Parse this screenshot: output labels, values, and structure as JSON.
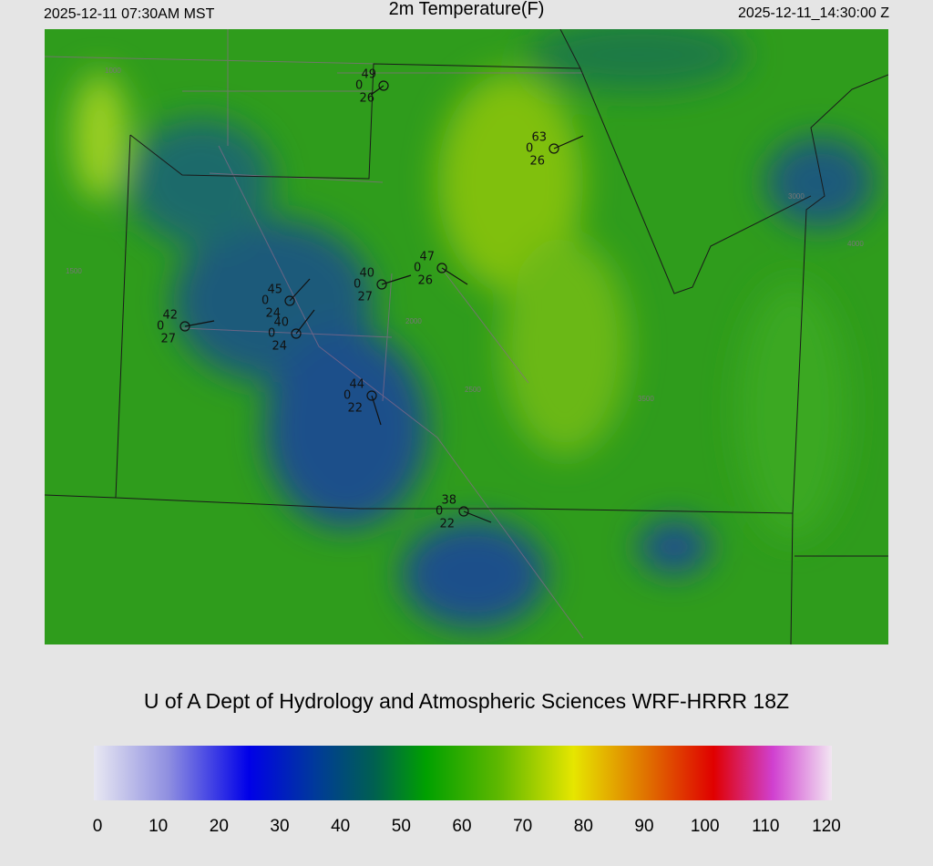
{
  "header": {
    "local_time": "2025-12-11 07:30AM MST",
    "title": "2m Temperature(F)",
    "utc_time": "2025-12-11_14:30:00 Z"
  },
  "stations": [
    {
      "temperature": "49",
      "pressure": "0",
      "dewpoint": "26"
    },
    {
      "temperature": "63",
      "pressure": "0",
      "dewpoint": "26"
    },
    {
      "temperature": "47",
      "pressure": "0",
      "dewpoint": "26"
    },
    {
      "temperature": "40",
      "pressure": "0",
      "dewpoint": "27"
    },
    {
      "temperature": "45",
      "pressure": "0",
      "dewpoint": "24"
    },
    {
      "temperature": "40",
      "pressure": "0",
      "dewpoint": "24"
    },
    {
      "temperature": "42",
      "pressure": "0",
      "dewpoint": "27"
    },
    {
      "temperature": "44",
      "pressure": "0",
      "dewpoint": "22"
    },
    {
      "temperature": "38",
      "pressure": "0",
      "dewpoint": "22"
    }
  ],
  "contour_labels": [
    "1000",
    "1500",
    "2000",
    "2500",
    "3000",
    "3500",
    "4000"
  ],
  "footer": "U of A Dept of Hydrology and Atmospheric Sciences WRF-HRRR 18Z",
  "colorbar": {
    "range": [
      0,
      120
    ],
    "ticks": [
      0,
      10,
      20,
      30,
      40,
      50,
      60,
      70,
      80,
      90,
      100,
      110,
      120
    ]
  }
}
